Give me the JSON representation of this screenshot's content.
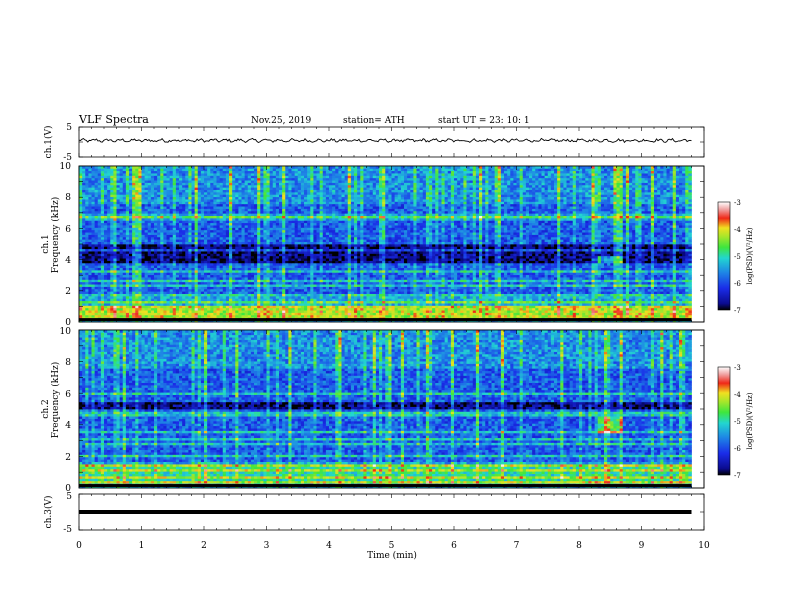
{
  "header": {
    "title": "VLF  Spectra",
    "date": "Nov.25, 2019",
    "station": "station= ATH",
    "start": "start  UT  =    23: 10: 1"
  },
  "chart_data": [
    {
      "type": "line",
      "panel": "ch1",
      "ylabel": "ch.1(V)",
      "xlim": [
        0,
        10
      ],
      "ylim": [
        -5,
        5
      ],
      "yticks": [
        "5",
        "-5"
      ],
      "signal": {
        "duration_min": 9.8,
        "mean": 0.5,
        "amplitude": 0.7
      }
    },
    {
      "type": "heatmap",
      "panel": "ch1-spectrogram",
      "ylabel_main": "Frequency  (kHz)",
      "ylabel_channel": "ch.1",
      "xlim": [
        0,
        10
      ],
      "ylim_khz": [
        0,
        10
      ],
      "yticks": [
        "0",
        "2",
        "4",
        "6",
        "8",
        "10"
      ],
      "data_end_min": 9.8,
      "colorbar": {
        "label": "log(PSD)(V²/Hz)",
        "range": [
          -7,
          -3
        ],
        "ticks": [
          "-3",
          "-4",
          "-5",
          "-6",
          "-7"
        ]
      },
      "features": [
        {
          "kind": "dark-band",
          "freq_khz": [
            3.8,
            5.0
          ]
        },
        {
          "kind": "bright-band",
          "freq_khz": [
            6.5,
            7.0
          ]
        },
        {
          "kind": "bright-band",
          "freq_khz": [
            0.2,
            1.0
          ]
        },
        {
          "kind": "patch",
          "time_min": [
            8.3,
            8.7
          ],
          "freq_khz": [
            3.8,
            4.3
          ]
        }
      ]
    },
    {
      "type": "heatmap",
      "panel": "ch2-spectrogram",
      "ylabel_main": "Frequency  (kHz)",
      "ylabel_channel": "ch.2",
      "xlim": [
        0,
        10
      ],
      "ylim_khz": [
        0,
        10
      ],
      "yticks": [
        "0",
        "2",
        "4",
        "6",
        "8",
        "10"
      ],
      "data_end_min": 9.8,
      "colorbar": {
        "label": "log(PSD)(V²/Hz)",
        "range": [
          -7,
          -3
        ],
        "ticks": [
          "-3",
          "-4",
          "-5",
          "-6",
          "-7"
        ]
      },
      "features": [
        {
          "kind": "dark-band",
          "freq_khz": [
            5.0,
            5.5
          ]
        },
        {
          "kind": "bright-band",
          "freq_khz": [
            0.3,
            1.5
          ]
        },
        {
          "kind": "patch",
          "time_min": [
            8.3,
            8.7
          ],
          "freq_khz": [
            3.5,
            4.5
          ]
        }
      ]
    },
    {
      "type": "line",
      "panel": "ch3",
      "ylabel": "ch.3(V)",
      "xlim": [
        0,
        10
      ],
      "ylim": [
        -5,
        5
      ],
      "yticks": [
        "5",
        "-5"
      ],
      "signal": {
        "duration_min": 9.8,
        "level": 0
      }
    }
  ],
  "xaxis": {
    "label": "Time  (min)",
    "ticks": [
      "0",
      "1",
      "2",
      "3",
      "4",
      "5",
      "6",
      "7",
      "8",
      "9",
      "10"
    ]
  }
}
